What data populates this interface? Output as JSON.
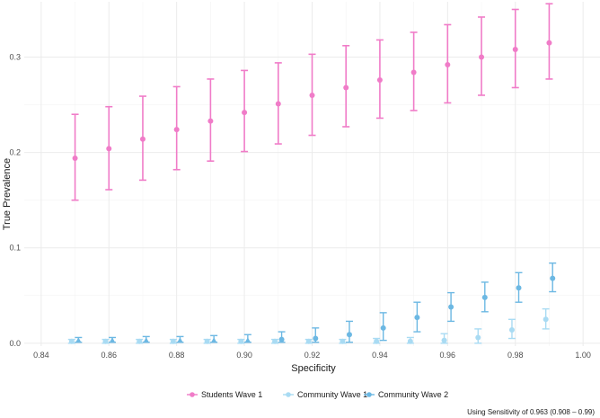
{
  "chart_data": {
    "type": "scatter",
    "title": "",
    "xlabel": "Specificity",
    "ylabel": "True Prevalence",
    "xlim": [
      0.835,
      1.005
    ],
    "ylim": [
      -0.003,
      0.358
    ],
    "x_ticks": [
      0.84,
      0.86,
      0.88,
      0.9,
      0.92,
      0.94,
      0.96,
      0.98,
      1.0
    ],
    "x_tick_labels": [
      "0.84",
      "0.86",
      "0.88",
      "0.90",
      "0.92",
      "0.94",
      "0.96",
      "0.98",
      "1.00"
    ],
    "y_ticks": [
      0.0,
      0.1,
      0.2,
      0.3
    ],
    "y_tick_labels": [
      "0.0",
      "0.1",
      "0.2",
      "0.3"
    ],
    "grid": true,
    "legend_position": "bottom",
    "caption": "Using Sensitivity of 0.963 (0.908 – 0.99)",
    "series": [
      {
        "name": "Students Wave 1",
        "color": "#f07cc8",
        "marker": "circle",
        "x": [
          0.85,
          0.86,
          0.87,
          0.88,
          0.89,
          0.9,
          0.91,
          0.92,
          0.93,
          0.94,
          0.95,
          0.96,
          0.97,
          0.98,
          0.99
        ],
        "y": [
          0.194,
          0.204,
          0.214,
          0.224,
          0.233,
          0.242,
          0.251,
          0.26,
          0.268,
          0.276,
          0.284,
          0.292,
          0.3,
          0.308,
          0.315
        ],
        "lower": [
          0.15,
          0.161,
          0.171,
          0.182,
          0.191,
          0.201,
          0.209,
          0.218,
          0.227,
          0.236,
          0.244,
          0.252,
          0.26,
          0.268,
          0.277
        ],
        "upper": [
          0.24,
          0.248,
          0.259,
          0.269,
          0.277,
          0.286,
          0.294,
          0.303,
          0.312,
          0.318,
          0.326,
          0.334,
          0.342,
          0.35,
          0.356
        ]
      },
      {
        "name": "Community Wave 1",
        "color": "#a9dbf3",
        "marker": "circle",
        "x": [
          0.849,
          0.859,
          0.869,
          0.879,
          0.889,
          0.899,
          0.909,
          0.919,
          0.929,
          0.939,
          0.949,
          0.959,
          0.969,
          0.979,
          0.989
        ],
        "y": [
          0.002,
          0.002,
          0.002,
          0.002,
          0.002,
          0.002,
          0.002,
          0.002,
          0.002,
          0.002,
          0.002,
          0.003,
          0.006,
          0.014,
          0.025
        ],
        "lower": [
          0.0,
          0.0,
          0.0,
          0.0,
          0.0,
          0.0,
          0.0,
          0.0,
          0.0,
          0.0,
          0.0,
          0.0,
          0.0,
          0.005,
          0.015
        ],
        "upper": [
          0.004,
          0.004,
          0.004,
          0.004,
          0.004,
          0.004,
          0.004,
          0.004,
          0.004,
          0.005,
          0.006,
          0.01,
          0.015,
          0.025,
          0.036
        ]
      },
      {
        "name": "Community Wave 2",
        "color": "#6cb8e3",
        "marker": "triangle-then-circle",
        "x": [
          0.851,
          0.861,
          0.871,
          0.881,
          0.891,
          0.901,
          0.911,
          0.921,
          0.931,
          0.941,
          0.951,
          0.961,
          0.971,
          0.981,
          0.991
        ],
        "y": [
          0.003,
          0.003,
          0.003,
          0.003,
          0.003,
          0.003,
          0.004,
          0.005,
          0.009,
          0.016,
          0.027,
          0.038,
          0.048,
          0.058,
          0.068
        ],
        "lower": [
          0.001,
          0.001,
          0.001,
          0.001,
          0.001,
          0.001,
          0.001,
          0.001,
          0.001,
          0.003,
          0.012,
          0.023,
          0.033,
          0.043,
          0.054
        ],
        "upper": [
          0.006,
          0.006,
          0.007,
          0.007,
          0.008,
          0.009,
          0.012,
          0.016,
          0.023,
          0.032,
          0.043,
          0.053,
          0.064,
          0.074,
          0.084
        ]
      }
    ]
  }
}
